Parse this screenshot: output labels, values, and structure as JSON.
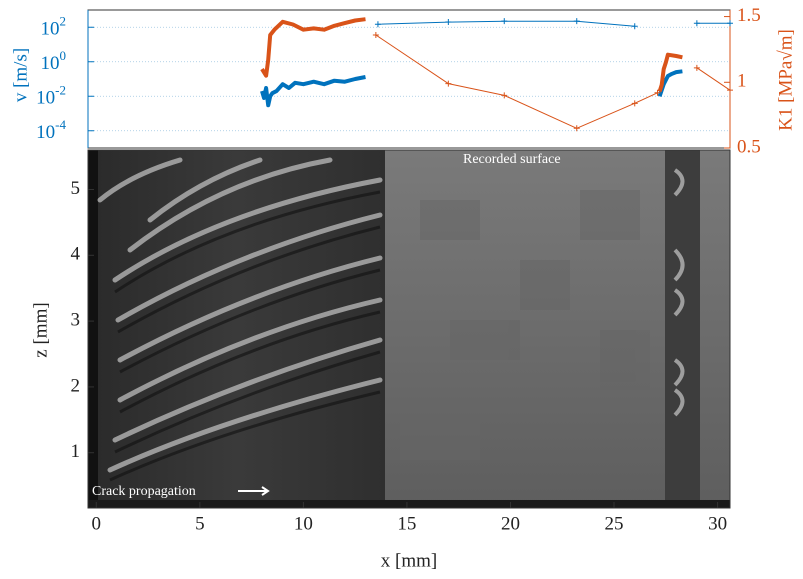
{
  "chart_data": [
    {
      "type": "line",
      "y_label": "v [m/s]",
      "y2_label": "K1 [MPa√m]",
      "xlim": [
        -0.4,
        30.6
      ],
      "ylim": [
        1e-05,
        1000
      ],
      "log_y": true,
      "y2lim": [
        0.5,
        1.55
      ],
      "grid": true,
      "yticks": [
        {
          "value": 0.0001,
          "label": "10",
          "exponent": "-4"
        },
        {
          "value": 0.01,
          "label": "10",
          "exponent": "-2"
        },
        {
          "value": 1,
          "label": "10",
          "exponent": "0"
        },
        {
          "value": 100,
          "label": "10",
          "exponent": "2"
        }
      ],
      "y2ticks": [
        0.5,
        1,
        1.5
      ],
      "series": [
        {
          "color": "#0072bd",
          "axis": "y",
          "line_width": 4,
          "marker": false,
          "x": [
            8,
            8.1,
            8.2,
            8.3,
            8.4,
            8.5,
            8.7,
            9,
            9.3,
            9.6,
            10,
            10.5,
            11,
            11.5,
            12,
            12.5,
            13,
            20,
            27.2,
            27.4,
            27.6,
            27.8,
            28,
            28.3
          ],
          "values": [
            0.02,
            0.008,
            0.03,
            0.003,
            0.01,
            0.015,
            0.02,
            0.05,
            0.03,
            0.06,
            0.05,
            0.07,
            0.05,
            0.08,
            0.07,
            0.1,
            0.13,
            null,
            0.01,
            0.05,
            0.15,
            0.2,
            0.25,
            0.28
          ]
        },
        {
          "color": "#0072bd",
          "axis": "y",
          "line_width": 1,
          "marker": true,
          "x": [
            13.6,
            17,
            19.7,
            23.2,
            26,
            27.5,
            29,
            30.6
          ],
          "values": [
            150,
            200,
            225,
            225,
            115,
            null,
            170,
            170
          ]
        },
        {
          "color": "#d95319",
          "axis": "y2",
          "line_width": 4,
          "marker": false,
          "x": [
            8,
            8.2,
            8.3,
            8.4,
            8.6,
            9,
            9.5,
            10,
            10.5,
            11,
            11.5,
            12,
            12.5,
            13,
            20,
            27.2,
            27.3,
            27.4,
            27.5,
            27.6,
            28,
            28.3
          ],
          "values": [
            1.1,
            1.05,
            1.17,
            1.36,
            1.4,
            1.46,
            1.44,
            1.4,
            1.41,
            1.4,
            1.43,
            1.45,
            1.47,
            1.48,
            null,
            0.93,
            0.98,
            1.1,
            1.15,
            1.21,
            1.2,
            1.19
          ]
        },
        {
          "color": "#d95319",
          "axis": "y2",
          "line_width": 1,
          "marker": true,
          "x": [
            13.5,
            17,
            19.7,
            23.2,
            26,
            27.1,
            28.1,
            29,
            30.6
          ],
          "values": [
            1.36,
            0.99,
            0.9,
            0.65,
            0.84,
            0.92,
            null,
            1.11,
            0.94
          ]
        }
      ]
    },
    {
      "type": "image",
      "x_label": "x [mm]",
      "y_label": "z [mm]",
      "xlim": [
        -0.4,
        30.6
      ],
      "ylim": [
        0.16,
        5.6
      ],
      "xticks": [
        0,
        5,
        10,
        15,
        20,
        25,
        30
      ],
      "yticks": [
        1,
        2,
        3,
        4,
        5
      ],
      "annotations": [
        "Recorded surface",
        "Crack propagation"
      ]
    }
  ]
}
